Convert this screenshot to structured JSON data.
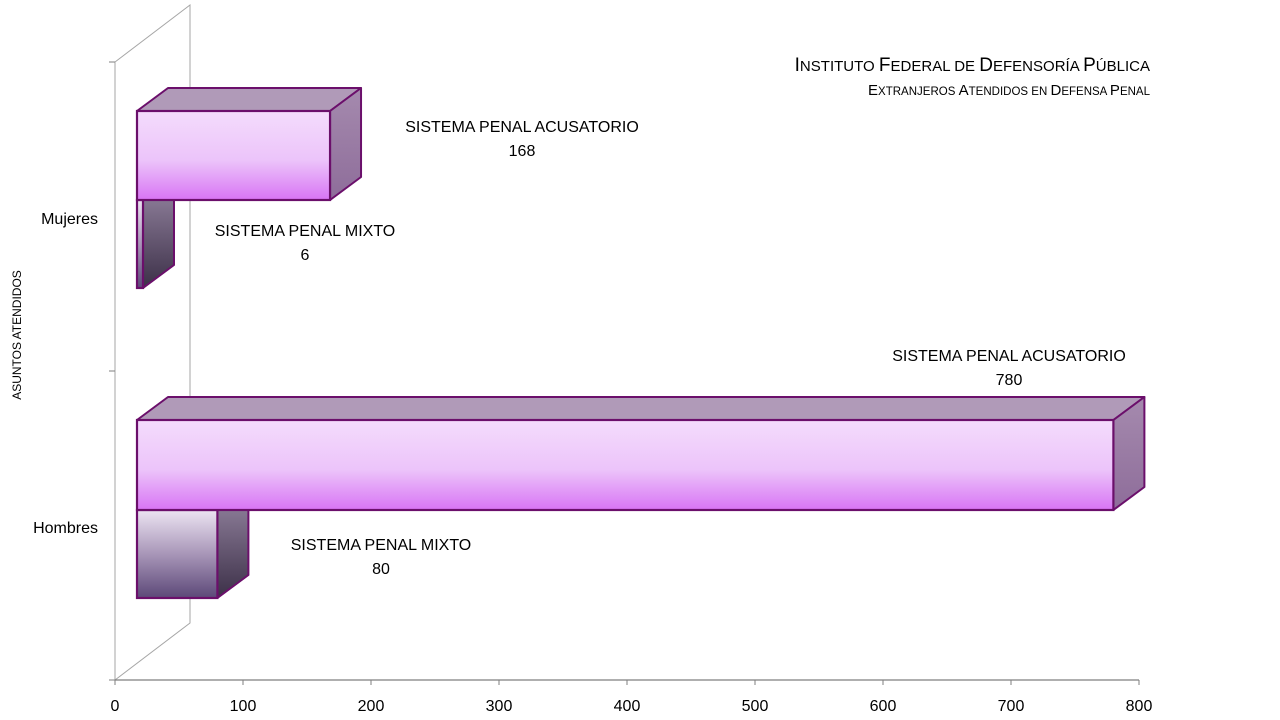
{
  "chart_data": {
    "type": "bar",
    "orientation": "horizontal",
    "title": "Instituto Federal de Defensoría Pública",
    "subtitle": "Extranjeros Atendidos en Defensa Penal",
    "xlabel": "",
    "ylabel": "ASUNTOS ATENDIDOS",
    "categories": [
      "Mujeres",
      "Hombres"
    ],
    "x_ticks": [
      "0",
      "100",
      "200",
      "300",
      "400",
      "500",
      "600",
      "700",
      "800"
    ],
    "xlim": [
      0,
      800
    ],
    "grid": false,
    "legend": "none",
    "series": [
      {
        "name": "SISTEMA PENAL ACUSATORIO",
        "values": [
          168,
          780
        ],
        "labels": [
          {
            "name": "SISTEMA PENAL ACUSATORIO",
            "value": "168"
          },
          {
            "name": "SISTEMA PENAL ACUSATORIO",
            "value": "780"
          }
        ]
      },
      {
        "name": "SISTEMA PENAL MIXTO",
        "values": [
          6,
          80
        ],
        "labels": [
          {
            "name": "SISTEMA PENAL MIXTO",
            "value": "6"
          },
          {
            "name": "SISTEMA PENAL MIXTO",
            "value": "80"
          }
        ]
      }
    ],
    "colors": {
      "acusatorio_face_top": "#f4dcfc",
      "acusatorio_face_bottom": "#d874f4",
      "mixto_face_top": "#e8dcf0",
      "mixto_face_bottom": "#5c4878",
      "edge": "#6b0f6b"
    }
  }
}
